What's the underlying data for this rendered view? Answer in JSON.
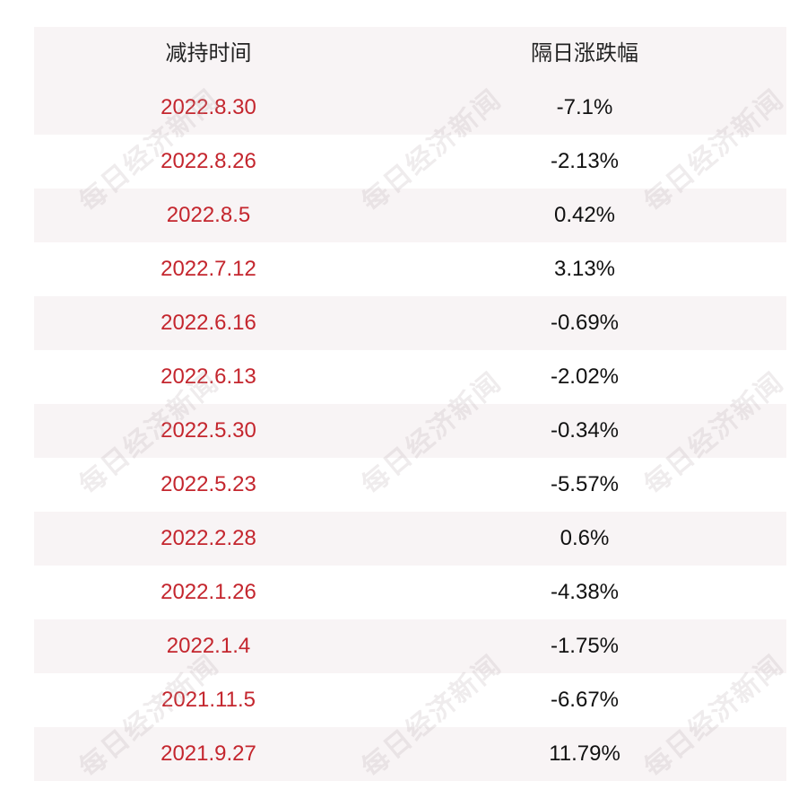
{
  "table": {
    "headers": {
      "date": "减持时间",
      "change": "隔日涨跌幅"
    },
    "rows": [
      {
        "date": "2022.8.30",
        "change": "-7.1%"
      },
      {
        "date": "2022.8.26",
        "change": "-2.13%"
      },
      {
        "date": "2022.8.5",
        "change": "0.42%"
      },
      {
        "date": "2022.7.12",
        "change": "3.13%"
      },
      {
        "date": "2022.6.16",
        "change": "-0.69%"
      },
      {
        "date": "2022.6.13",
        "change": "-2.02%"
      },
      {
        "date": "2022.5.30",
        "change": "-0.34%"
      },
      {
        "date": "2022.5.23",
        "change": "-5.57%"
      },
      {
        "date": "2022.2.28",
        "change": "0.6%"
      },
      {
        "date": "2022.1.26",
        "change": "-4.38%"
      },
      {
        "date": "2022.1.4",
        "change": "-1.75%"
      },
      {
        "date": "2021.11.5",
        "change": "-6.67%"
      },
      {
        "date": "2021.9.27",
        "change": "11.79%"
      }
    ]
  },
  "watermark": {
    "text": "每日经济新闻"
  },
  "colors": {
    "date_text": "#c4262e",
    "change_text": "#111111",
    "row_shade": "#f8f4f5"
  }
}
